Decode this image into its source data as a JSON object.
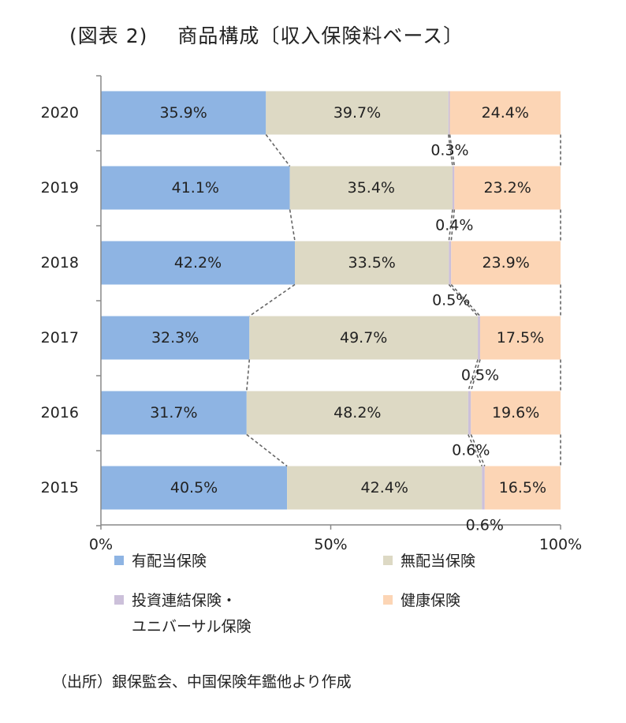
{
  "title_part1": "(図表 2)",
  "title_part2": "商品構成〔収入保険料ベース〕",
  "chart_data": {
    "type": "bar",
    "orientation": "horizontal",
    "stacked": true,
    "categories": [
      "2020",
      "2019",
      "2018",
      "2017",
      "2016",
      "2015"
    ],
    "series": [
      {
        "name": "有配当保険",
        "color": "#8eb4e3",
        "values": [
          35.9,
          41.1,
          42.2,
          32.3,
          31.7,
          40.5
        ]
      },
      {
        "name": "無配当保険",
        "color": "#ddd9c4",
        "values": [
          39.7,
          35.4,
          33.5,
          49.7,
          48.2,
          42.4
        ]
      },
      {
        "name": "投資連結保険・ユニバーサル保険",
        "color": "#ccc0da",
        "values": [
          0.3,
          0.4,
          0.5,
          0.5,
          0.6,
          0.6
        ]
      },
      {
        "name": "健康保険",
        "color": "#fcd5b5",
        "values": [
          24.4,
          23.2,
          23.9,
          17.5,
          19.6,
          16.5
        ]
      }
    ],
    "value_labels": [
      [
        "35.9%",
        "39.7%",
        "0.3%",
        "24.4%"
      ],
      [
        "41.1%",
        "35.4%",
        "0.4%",
        "23.2%"
      ],
      [
        "42.2%",
        "33.5%",
        "0.5%",
        "23.9%"
      ],
      [
        "32.3%",
        "49.7%",
        "0.5%",
        "17.5%"
      ],
      [
        "31.7%",
        "48.2%",
        "0.6%",
        "19.6%"
      ],
      [
        "40.5%",
        "42.4%",
        "0.6%",
        "16.5%"
      ]
    ],
    "xlim": [
      0,
      100
    ],
    "x_ticks": [
      "0%",
      "50%",
      "100%"
    ],
    "series_lines": true,
    "legend_position": "bottom"
  },
  "legend": {
    "item1": "有配当保険",
    "item2": "無配当保険",
    "item3_line1": "投資連結保険・",
    "item3_line2": "ユニバーサル保険",
    "item4": "健康保険"
  },
  "source": "（出所）銀保監会、中国保険年鑑他より作成"
}
